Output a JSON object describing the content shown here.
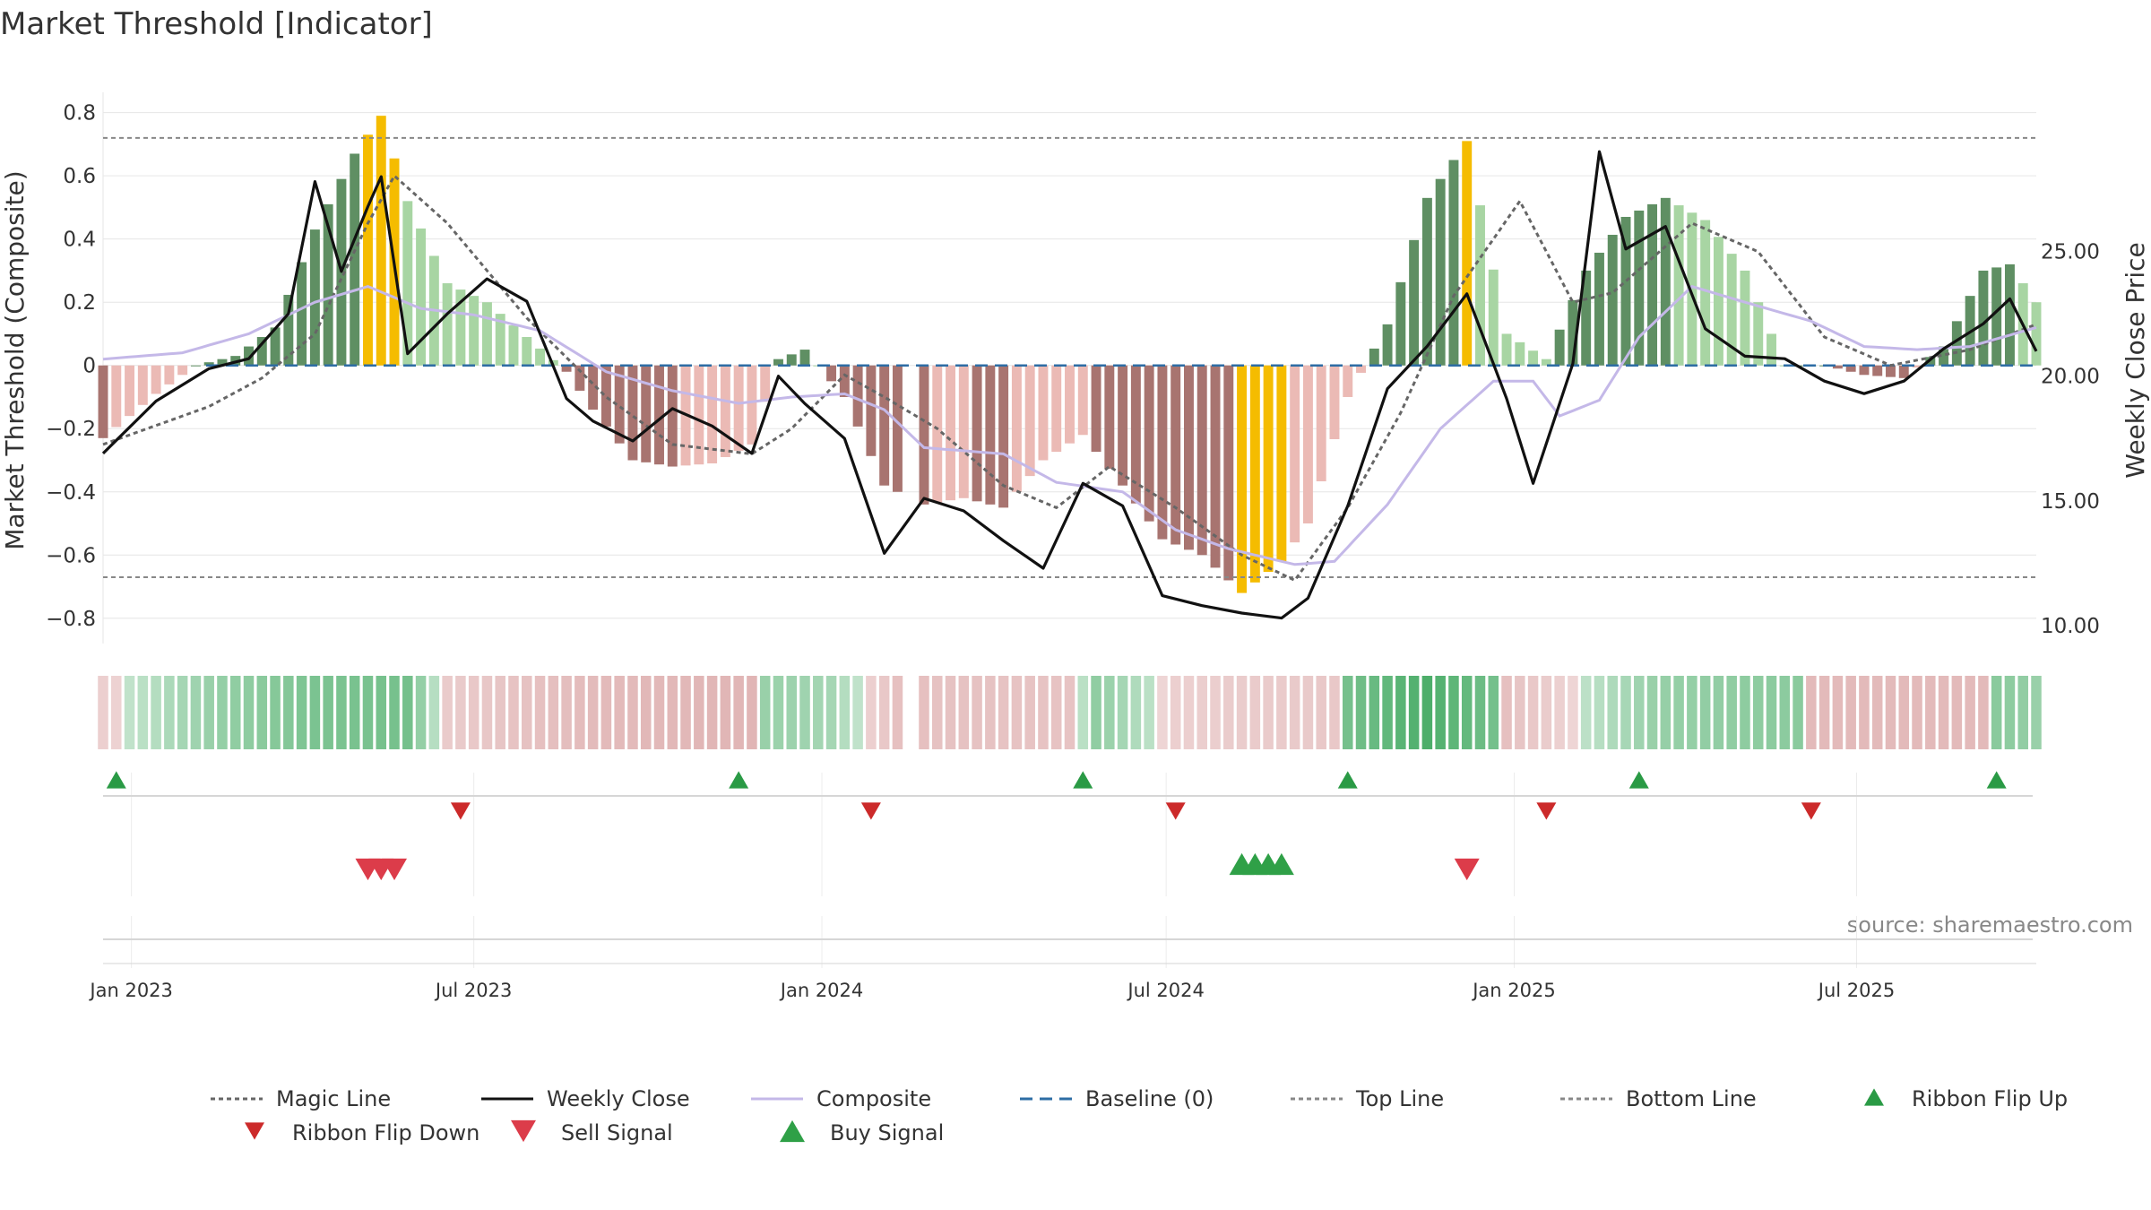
{
  "title": "Market Threshold [Indicator]",
  "source_text": "source: sharemaestro.com",
  "colors": {
    "bull_dark": "#5f8f63",
    "bull_light": "#a8d5a3",
    "bear_dark": "#a87470",
    "bear_light": "#ebbab5",
    "extreme": "#f5bc00",
    "weekly_close": "#111111",
    "composite": "#c4b8e8",
    "magic_line": "#666666",
    "baseline": "#2e6da4",
    "threshold_line": "#888888",
    "flip_up": "#2a9a45",
    "flip_down": "#cc2a2a",
    "sell": "#dc3c4a",
    "buy": "#2fa047"
  },
  "chart_data": {
    "type": "bar",
    "title": "Market Threshold [Indicator]",
    "ylabel_left": "Market Threshold (Composite)",
    "ylabel_right": "Weekly Close Price",
    "ylim_left": [
      -0.88,
      0.85
    ],
    "ylim_right": [
      9.28,
      31.2
    ],
    "yticks_left": [
      "0.8",
      "0.6",
      "0.4",
      "0.2",
      "0",
      "−0.2",
      "−0.4",
      "−0.6",
      "−0.8"
    ],
    "yticks_left_values": [
      0.8,
      0.6,
      0.4,
      0.2,
      0,
      -0.2,
      -0.4,
      -0.6,
      -0.8
    ],
    "yticks_right": [
      "25.00",
      "20.00",
      "15.00",
      "10.00"
    ],
    "yticks_right_values": [
      25,
      20,
      15,
      10
    ],
    "xticks": [
      "Jan 2023",
      "Jul 2023",
      "Jan 2024",
      "Jul 2024",
      "Jan 2025",
      "Jul 2025"
    ],
    "xticks_values": [
      "2023-01-01",
      "2023-07-01",
      "2024-01-01",
      "2024-07-01",
      "2025-01-01",
      "2025-07-01"
    ],
    "x_range": [
      "2022-12-17",
      "2025-10-04"
    ],
    "top_line": 0.72,
    "bottom_line": -0.67,
    "baseline": 0,
    "grid": true,
    "legend_position": "bottom",
    "legend": [
      {
        "label": "Magic Line",
        "kind": "dotted",
        "color": "#666666"
      },
      {
        "label": "Weekly Close",
        "kind": "solid",
        "color": "#111111"
      },
      {
        "label": "Composite",
        "kind": "solid",
        "color": "#c4b8e8"
      },
      {
        "label": "Baseline (0)",
        "kind": "dashed",
        "color": "#2e6da4"
      },
      {
        "label": "Top Line",
        "kind": "dotted",
        "color": "#888888"
      },
      {
        "label": "Bottom Line",
        "kind": "dotted",
        "color": "#888888"
      },
      {
        "label": "Ribbon Flip Up",
        "kind": "up",
        "color": "#2a9a45"
      },
      {
        "label": "Ribbon Flip Down",
        "kind": "down",
        "color": "#cc2a2a"
      },
      {
        "label": "Sell Signal",
        "kind": "down",
        "color": "#dc3c4a"
      },
      {
        "label": "Buy Signal",
        "kind": "up",
        "color": "#2fa047"
      }
    ],
    "bar_anchors": [
      [
        "2022-12-17",
        -0.23
      ],
      [
        "2023-01-14",
        -0.09
      ],
      [
        "2023-02-04",
        0.0
      ],
      [
        "2023-02-25",
        0.03
      ],
      [
        "2023-03-18",
        0.12
      ],
      [
        "2023-04-08",
        0.43
      ],
      [
        "2023-04-29",
        0.67
      ],
      [
        "2023-05-13",
        0.79
      ],
      [
        "2023-05-27",
        0.52
      ],
      [
        "2023-06-17",
        0.26
      ],
      [
        "2023-07-08",
        0.2
      ],
      [
        "2023-07-29",
        0.09
      ],
      [
        "2023-08-19",
        -0.02
      ],
      [
        "2023-09-02",
        -0.14
      ],
      [
        "2023-09-23",
        -0.3
      ],
      [
        "2023-10-14",
        -0.32
      ],
      [
        "2023-11-04",
        -0.31
      ],
      [
        "2023-11-25",
        -0.25
      ],
      [
        "2023-12-09",
        0.02
      ],
      [
        "2023-12-23",
        0.05
      ],
      [
        "2024-01-13",
        -0.1
      ],
      [
        "2024-02-03",
        -0.38
      ],
      [
        "2024-02-24",
        -0.44
      ],
      [
        "2024-03-16",
        -0.42
      ],
      [
        "2024-04-06",
        -0.45
      ],
      [
        "2024-04-27",
        -0.3
      ],
      [
        "2024-05-18",
        -0.22
      ],
      [
        "2024-06-08",
        -0.38
      ],
      [
        "2024-06-29",
        -0.55
      ],
      [
        "2024-07-20",
        -0.6
      ],
      [
        "2024-08-10",
        -0.72
      ],
      [
        "2024-08-31",
        -0.62
      ],
      [
        "2024-09-14",
        -0.5
      ],
      [
        "2024-10-05",
        -0.1
      ],
      [
        "2024-10-26",
        0.13
      ],
      [
        "2024-11-16",
        0.53
      ],
      [
        "2024-12-07",
        0.71
      ],
      [
        "2024-12-28",
        0.1
      ],
      [
        "2025-01-18",
        0.02
      ],
      [
        "2025-02-08",
        0.3
      ],
      [
        "2025-03-01",
        0.47
      ],
      [
        "2025-03-22",
        0.53
      ],
      [
        "2025-04-12",
        0.46
      ],
      [
        "2025-05-03",
        0.3
      ],
      [
        "2025-05-24",
        0.0
      ],
      [
        "2025-06-14",
        0.0
      ],
      [
        "2025-07-05",
        -0.03
      ],
      [
        "2025-07-26",
        -0.04
      ],
      [
        "2025-08-16",
        0.06
      ],
      [
        "2025-09-06",
        0.3
      ],
      [
        "2025-09-20",
        0.32
      ],
      [
        "2025-10-04",
        0.2
      ]
    ],
    "extreme_bars": [
      "2023-05-06",
      "2023-05-13",
      "2023-05-20",
      "2024-12-07",
      "2024-08-10",
      "2024-08-17",
      "2024-08-24",
      "2024-08-31"
    ],
    "bar_gap_dates": [
      "2024-02-17"
    ],
    "weekly_close": [
      [
        "2022-12-17",
        16.9
      ],
      [
        "2023-01-14",
        19.0
      ],
      [
        "2023-02-11",
        20.3
      ],
      [
        "2023-03-04",
        20.7
      ],
      [
        "2023-03-25",
        22.5
      ],
      [
        "2023-04-08",
        27.8
      ],
      [
        "2023-04-22",
        24.2
      ],
      [
        "2023-05-06",
        26.8
      ],
      [
        "2023-05-13",
        28.0
      ],
      [
        "2023-05-27",
        20.9
      ],
      [
        "2023-06-17",
        22.5
      ],
      [
        "2023-07-08",
        23.9
      ],
      [
        "2023-07-29",
        23.0
      ],
      [
        "2023-08-19",
        19.1
      ],
      [
        "2023-09-02",
        18.2
      ],
      [
        "2023-09-23",
        17.4
      ],
      [
        "2023-10-14",
        18.7
      ],
      [
        "2023-11-04",
        18.0
      ],
      [
        "2023-11-25",
        16.9
      ],
      [
        "2023-12-09",
        20.0
      ],
      [
        "2023-12-23",
        18.9
      ],
      [
        "2024-01-13",
        17.5
      ],
      [
        "2024-02-03",
        12.9
      ],
      [
        "2024-02-24",
        15.1
      ],
      [
        "2024-03-16",
        14.6
      ],
      [
        "2024-04-06",
        13.4
      ],
      [
        "2024-04-27",
        12.3
      ],
      [
        "2024-05-18",
        15.7
      ],
      [
        "2024-06-08",
        14.8
      ],
      [
        "2024-06-29",
        11.2
      ],
      [
        "2024-07-20",
        10.8
      ],
      [
        "2024-08-10",
        10.5
      ],
      [
        "2024-08-31",
        10.3
      ],
      [
        "2024-09-14",
        11.1
      ],
      [
        "2024-10-05",
        14.8
      ],
      [
        "2024-10-26",
        19.5
      ],
      [
        "2024-11-16",
        21.2
      ],
      [
        "2024-12-07",
        23.3
      ],
      [
        "2024-12-28",
        19.1
      ],
      [
        "2025-01-11",
        15.7
      ],
      [
        "2025-02-01",
        20.5
      ],
      [
        "2025-02-15",
        29.0
      ],
      [
        "2025-03-01",
        25.1
      ],
      [
        "2025-03-22",
        26.0
      ],
      [
        "2025-04-12",
        21.9
      ],
      [
        "2025-05-03",
        20.8
      ],
      [
        "2025-05-24",
        20.7
      ],
      [
        "2025-06-14",
        19.8
      ],
      [
        "2025-07-05",
        19.3
      ],
      [
        "2025-07-26",
        19.8
      ],
      [
        "2025-08-16",
        21.1
      ],
      [
        "2025-09-06",
        22.1
      ],
      [
        "2025-09-20",
        23.1
      ],
      [
        "2025-10-04",
        21.0
      ]
    ],
    "composite": [
      [
        "2022-12-17",
        0.02
      ],
      [
        "2023-01-28",
        0.04
      ],
      [
        "2023-03-04",
        0.1
      ],
      [
        "2023-04-08",
        0.2
      ],
      [
        "2023-05-06",
        0.25
      ],
      [
        "2023-06-03",
        0.18
      ],
      [
        "2023-07-01",
        0.16
      ],
      [
        "2023-08-05",
        0.11
      ],
      [
        "2023-09-09",
        -0.02
      ],
      [
        "2023-10-14",
        -0.08
      ],
      [
        "2023-11-18",
        -0.12
      ],
      [
        "2023-12-16",
        -0.1
      ],
      [
        "2024-01-13",
        -0.09
      ],
      [
        "2024-02-03",
        -0.14
      ],
      [
        "2024-02-24",
        -0.26
      ],
      [
        "2024-04-06",
        -0.28
      ],
      [
        "2024-05-04",
        -0.37
      ],
      [
        "2024-06-08",
        -0.4
      ],
      [
        "2024-07-06",
        -0.52
      ],
      [
        "2024-08-03",
        -0.58
      ],
      [
        "2024-09-07",
        -0.63
      ],
      [
        "2024-09-28",
        -0.62
      ],
      [
        "2024-10-26",
        -0.44
      ],
      [
        "2024-11-23",
        -0.2
      ],
      [
        "2024-12-21",
        -0.05
      ],
      [
        "2025-01-11",
        -0.05
      ],
      [
        "2025-01-25",
        -0.16
      ],
      [
        "2025-02-15",
        -0.11
      ],
      [
        "2025-03-08",
        0.09
      ],
      [
        "2025-04-05",
        0.25
      ],
      [
        "2025-05-03",
        0.2
      ],
      [
        "2025-06-07",
        0.14
      ],
      [
        "2025-07-05",
        0.06
      ],
      [
        "2025-08-02",
        0.05
      ],
      [
        "2025-08-30",
        0.06
      ],
      [
        "2025-10-04",
        0.12
      ]
    ],
    "magic_line": [
      [
        "2022-12-17",
        -0.25
      ],
      [
        "2023-02-11",
        -0.13
      ],
      [
        "2023-03-11",
        -0.04
      ],
      [
        "2023-04-08",
        0.1
      ],
      [
        "2023-05-06",
        0.45
      ],
      [
        "2023-05-20",
        0.6
      ],
      [
        "2023-06-17",
        0.45
      ],
      [
        "2023-07-29",
        0.15
      ],
      [
        "2023-09-09",
        -0.1
      ],
      [
        "2023-10-14",
        -0.25
      ],
      [
        "2023-11-25",
        -0.28
      ],
      [
        "2023-12-16",
        -0.2
      ],
      [
        "2024-01-13",
        -0.03
      ],
      [
        "2024-02-03",
        -0.1
      ],
      [
        "2024-03-02",
        -0.2
      ],
      [
        "2024-04-06",
        -0.38
      ],
      [
        "2024-05-04",
        -0.45
      ],
      [
        "2024-06-01",
        -0.32
      ],
      [
        "2024-07-06",
        -0.45
      ],
      [
        "2024-08-10",
        -0.6
      ],
      [
        "2024-09-07",
        -0.68
      ],
      [
        "2024-10-05",
        -0.45
      ],
      [
        "2024-11-02",
        -0.15
      ],
      [
        "2024-11-30",
        0.22
      ],
      [
        "2025-01-04",
        0.52
      ],
      [
        "2025-02-01",
        0.2
      ],
      [
        "2025-02-22",
        0.23
      ],
      [
        "2025-04-05",
        0.45
      ],
      [
        "2025-05-10",
        0.36
      ],
      [
        "2025-06-14",
        0.09
      ],
      [
        "2025-07-19",
        0.0
      ],
      [
        "2025-08-30",
        0.05
      ],
      [
        "2025-10-04",
        0.13
      ]
    ],
    "ribbon_anchors": [
      [
        "2022-12-17",
        -0.1
      ],
      [
        "2023-02-11",
        0.3
      ],
      [
        "2023-04-08",
        0.5
      ],
      [
        "2023-05-27",
        0.55
      ],
      [
        "2023-06-17",
        -0.15
      ],
      [
        "2023-09-09",
        -0.4
      ],
      [
        "2023-11-25",
        -0.45
      ],
      [
        "2023-12-02",
        0.3
      ],
      [
        "2024-01-06",
        0.2
      ],
      [
        "2024-02-10",
        -0.3
      ],
      [
        "2024-05-11",
        -0.25
      ],
      [
        "2024-05-25",
        0.35
      ],
      [
        "2024-07-06",
        -0.1
      ],
      [
        "2024-09-28",
        -0.2
      ],
      [
        "2024-10-05",
        0.55
      ],
      [
        "2024-11-16",
        0.85
      ],
      [
        "2024-12-21",
        0.55
      ],
      [
        "2024-12-28",
        -0.3
      ],
      [
        "2025-03-15",
        0.3
      ],
      [
        "2025-05-31",
        0.4
      ],
      [
        "2025-06-07",
        -0.4
      ],
      [
        "2025-09-06",
        -0.4
      ],
      [
        "2025-09-13",
        0.4
      ],
      [
        "2025-10-04",
        0.3
      ]
    ],
    "ribbon_flip_up": [
      "2022-12-24",
      "2023-11-18",
      "2024-05-18",
      "2024-10-05",
      "2025-03-08",
      "2025-09-13"
    ],
    "ribbon_flip_down": [
      "2023-06-24",
      "2024-01-27",
      "2024-07-06",
      "2025-01-18",
      "2025-06-07"
    ],
    "sell_signals": [
      "2023-05-06",
      "2023-05-13",
      "2023-05-20",
      "2024-12-07"
    ],
    "buy_signals": [
      "2024-08-10",
      "2024-08-17",
      "2024-08-24",
      "2024-08-31"
    ]
  }
}
